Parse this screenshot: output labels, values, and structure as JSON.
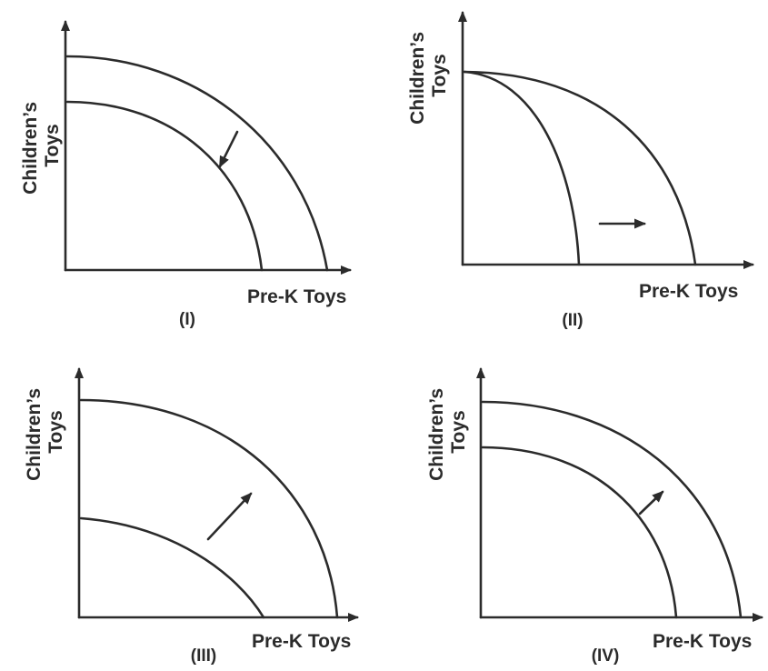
{
  "panels": [
    {
      "id": "I",
      "label": "(I)",
      "y_axis_label": [
        "Children’s",
        "Toys"
      ],
      "x_axis_label": "Pre-K Toys",
      "curves": [
        "outer-ppf",
        "inner-ppf"
      ],
      "shift": "inward"
    },
    {
      "id": "II",
      "label": "(II)",
      "y_axis_label": [
        "Children’s",
        "Toys"
      ],
      "x_axis_label": "Pre-K Toys",
      "curves": [
        "inner-ppf",
        "outer-ppf"
      ],
      "shift": "outward-along-x-axis"
    },
    {
      "id": "III",
      "label": "(III)",
      "y_axis_label": [
        "Children’s",
        "Toys"
      ],
      "x_axis_label": "Pre-K Toys",
      "curves": [
        "outer-ppf",
        "inner-ppf"
      ],
      "shift": "outward"
    },
    {
      "id": "IV",
      "label": "(IV)",
      "y_axis_label": [
        "Children’s",
        "Toys"
      ],
      "x_axis_label": "Pre-K Toys",
      "curves": [
        "outer-ppf",
        "inner-ppf"
      ],
      "shift": "outward"
    }
  ],
  "colors": {
    "ink": "#2b2b2b",
    "background": "#ffffff"
  }
}
